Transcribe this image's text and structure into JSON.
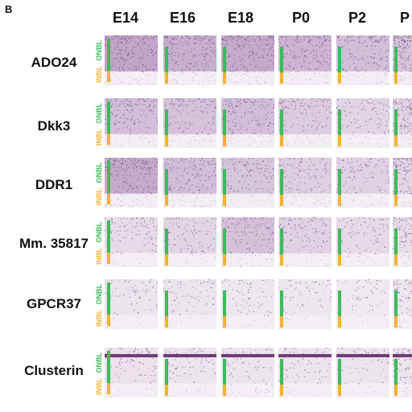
{
  "figure": {
    "panel_letter": "B",
    "columns": [
      "E14",
      "E16",
      "E18",
      "P0",
      "P2",
      "P"
    ],
    "rows": [
      {
        "gene": "ADO24",
        "layer_onbl": "ONBL",
        "layer_inbl": "INBL"
      },
      {
        "gene": "Dkk3",
        "layer_onbl": "ONBL",
        "layer_inbl": "INBL"
      },
      {
        "gene": "DDR1",
        "layer_onbl": "ONBL",
        "layer_inbl": "INBL"
      },
      {
        "gene": "Mm. 35817",
        "layer_onbl": "ONBL",
        "layer_inbl": "INBL"
      },
      {
        "gene": "GPCR37",
        "layer_onbl": "ONBL",
        "layer_inbl": "INBL"
      },
      {
        "gene": "Clusterin",
        "layer_onbl": "ONBL",
        "layer_inbl": "INBL"
      }
    ],
    "colors": {
      "onbl_bar": "#3dba5c",
      "inbl_bar": "#f2b233",
      "onbl_text": "#3dba5c",
      "inbl_text": "#f2b233",
      "stain": "#7b3f8c"
    },
    "stain_intensity": [
      [
        0.9,
        0.8,
        0.85,
        0.7,
        0.6,
        0.5
      ],
      [
        0.6,
        0.55,
        0.6,
        0.45,
        0.3,
        0.3
      ],
      [
        0.85,
        0.6,
        0.5,
        0.4,
        0.35,
        0.3
      ],
      [
        0.25,
        0.3,
        0.55,
        0.35,
        0.25,
        0.2
      ],
      [
        0.1,
        0.1,
        0.08,
        0.08,
        0.06,
        0.08
      ],
      [
        0.15,
        0.12,
        0.12,
        0.1,
        0.1,
        0.1
      ]
    ]
  }
}
